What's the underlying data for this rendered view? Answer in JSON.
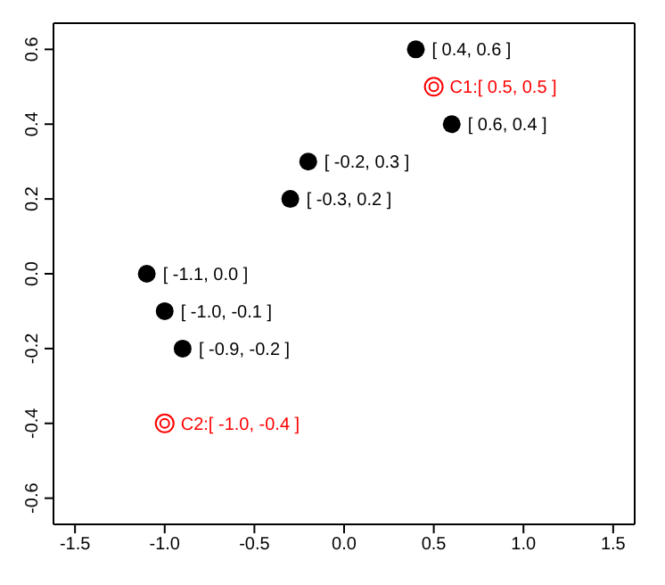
{
  "chart_data": {
    "type": "scatter",
    "xlim": [
      -1.62,
      1.62
    ],
    "ylim": [
      -0.67,
      0.67
    ],
    "xticks": [
      -1.5,
      {
        "value": -1,
        "label": "-1.0"
      },
      -0.5,
      {
        "value": 0,
        "label": "0.0"
      },
      0.5,
      {
        "value": 1,
        "label": "1.0"
      },
      1.5
    ],
    "yticks": [
      -0.6,
      -0.4,
      -0.2,
      {
        "value": 0,
        "label": "0.0"
      },
      0.2,
      0.4,
      0.6
    ],
    "legend": false,
    "series": [
      {
        "color": "#000000",
        "marker": "circle",
        "x": [
          0.4,
          0.6,
          -0.2,
          -0.3,
          -1.1,
          -1.0,
          -0.9
        ],
        "values": [
          0.6,
          0.4,
          0.3,
          0.2,
          0.0,
          -0.1,
          -0.2
        ],
        "value_labels": [
          "[ 0.4, 0.6 ]",
          "[ 0.6, 0.4 ]",
          "[ -0.2, 0.3 ]",
          "[ -0.3, 0.2 ]",
          "[ -1.1, 0.0 ]",
          "[ -1.0, -0.1 ]",
          "[ -0.9, -0.2 ]"
        ]
      },
      {
        "color": "#ff0000",
        "marker": "circle",
        "x": [
          0.5,
          -1.0
        ],
        "values": [
          0.5,
          -0.4
        ],
        "value_labels": [
          "C1:[ 0.5, 0.5 ]",
          "C2:[ -1.0, -0.4 ]"
        ]
      }
    ]
  }
}
